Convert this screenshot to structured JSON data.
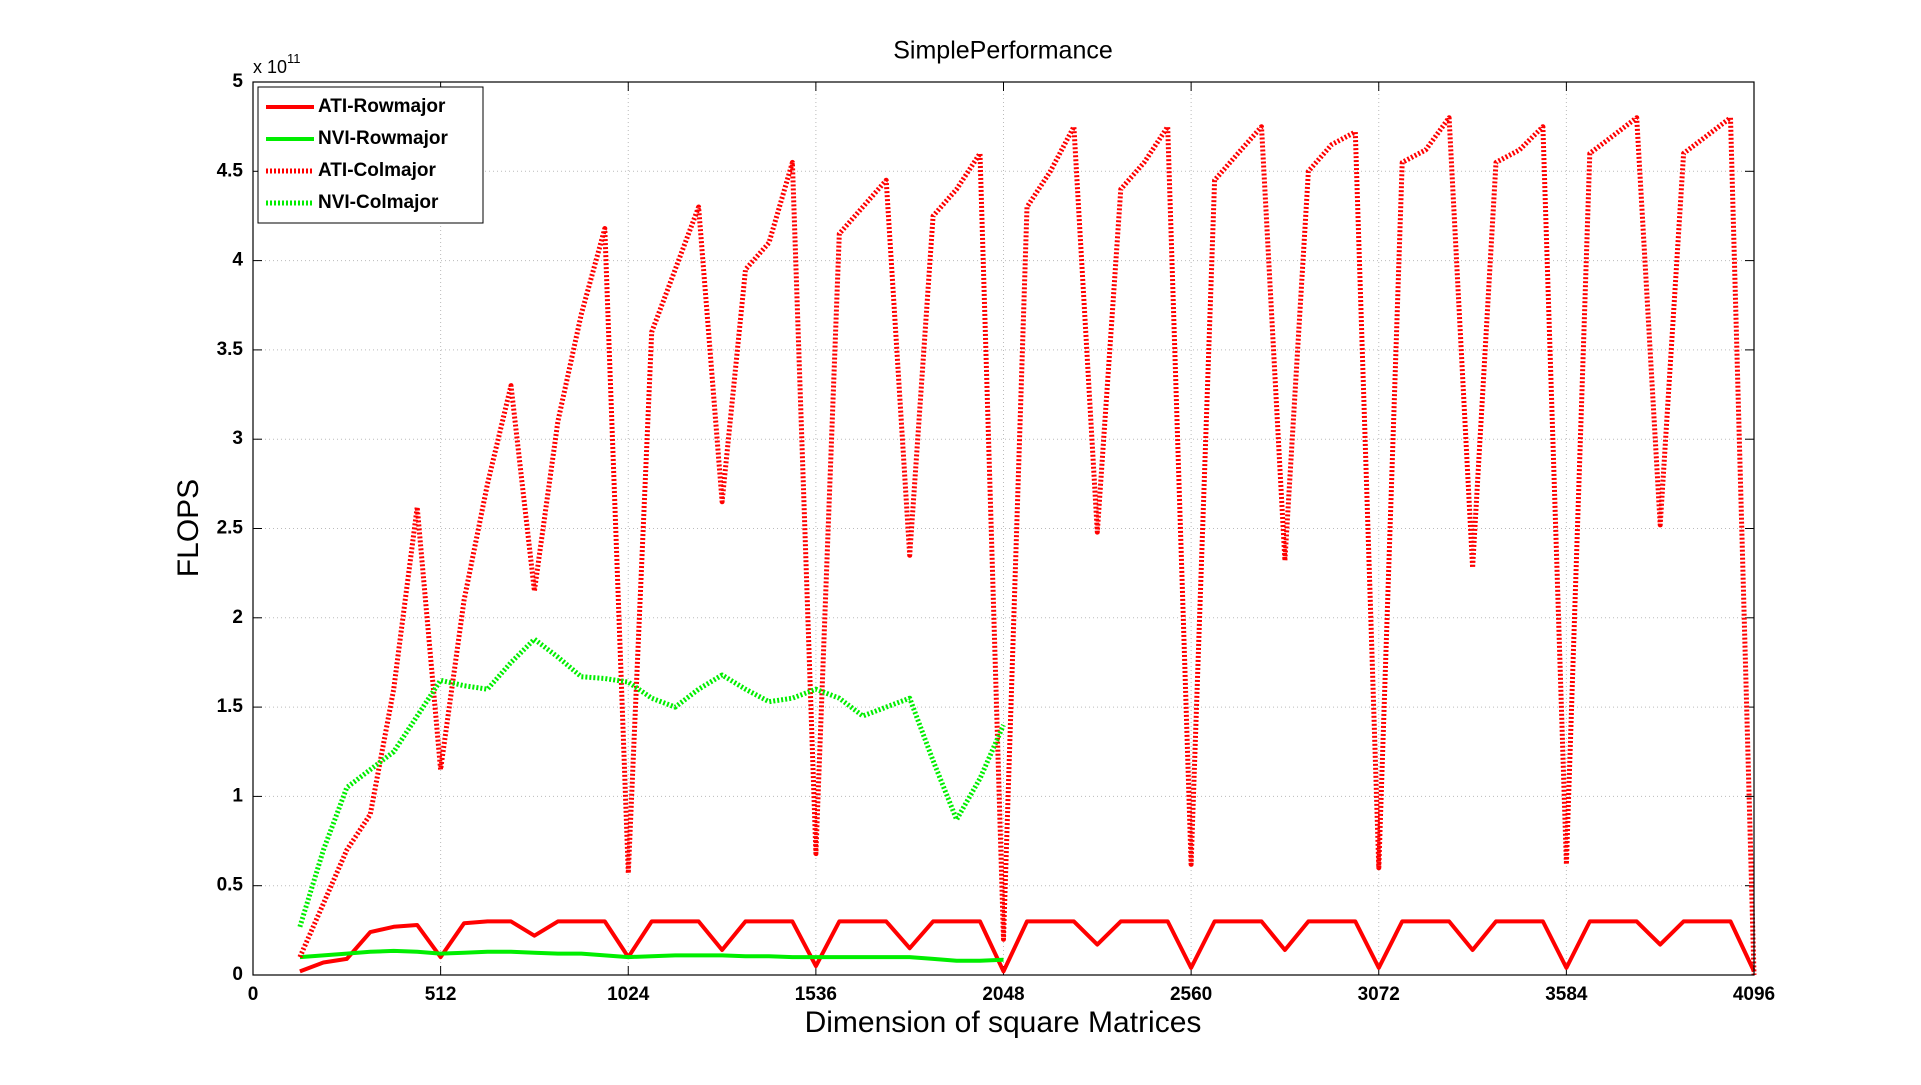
{
  "chart_data": {
    "type": "line",
    "title": "SimplePerformance",
    "xlabel": "Dimension of square Matrices",
    "ylabel": "FLOPS",
    "y_scale_label": "x 10",
    "y_scale_exponent": "11",
    "x": [
      128,
      192,
      256,
      320,
      384,
      448,
      512,
      576,
      640,
      704,
      768,
      832,
      896,
      960,
      1024,
      1088,
      1152,
      1216,
      1280,
      1344,
      1408,
      1472,
      1536,
      1600,
      1664,
      1728,
      1792,
      1856,
      1920,
      1984,
      2048,
      2112,
      2176,
      2240,
      2304,
      2368,
      2432,
      2496,
      2560,
      2624,
      2688,
      2752,
      2816,
      2880,
      2944,
      3008,
      3072,
      3136,
      3200,
      3264,
      3328,
      3392,
      3456,
      3520,
      3584,
      3648,
      3712,
      3776,
      3840,
      3904,
      3968,
      4032,
      4096
    ],
    "series": [
      {
        "name": "ATI-Rowmajor",
        "color": "#ff0000",
        "style": "solid",
        "values": [
          0.02,
          0.07,
          0.09,
          0.24,
          0.27,
          0.28,
          0.1,
          0.29,
          0.3,
          0.3,
          0.22,
          0.3,
          0.3,
          0.3,
          0.1,
          0.3,
          0.3,
          0.3,
          0.14,
          0.3,
          0.3,
          0.3,
          0.05,
          0.3,
          0.3,
          0.3,
          0.15,
          0.3,
          0.3,
          0.3,
          0.02,
          0.3,
          0.3,
          0.3,
          0.17,
          0.3,
          0.3,
          0.3,
          0.04,
          0.3,
          0.3,
          0.3,
          0.14,
          0.3,
          0.3,
          0.3,
          0.04,
          0.3,
          0.3,
          0.3,
          0.14,
          0.3,
          0.3,
          0.3,
          0.04,
          0.3,
          0.3,
          0.3,
          0.17,
          0.3,
          0.3,
          0.3,
          0.02
        ]
      },
      {
        "name": "NVI-Rowmajor",
        "color": "#00ee00",
        "style": "solid",
        "values": [
          0.1,
          0.11,
          0.12,
          0.13,
          0.135,
          0.13,
          0.12,
          0.125,
          0.13,
          0.13,
          0.125,
          0.12,
          0.12,
          0.11,
          0.1,
          0.105,
          0.11,
          0.11,
          0.11,
          0.105,
          0.105,
          0.1,
          0.1,
          0.1,
          0.1,
          0.1,
          0.1,
          0.09,
          0.08,
          0.08,
          0.085,
          null,
          null,
          null,
          null,
          null,
          null,
          null,
          null,
          null,
          null,
          null,
          null,
          null,
          null,
          null,
          null,
          null,
          null,
          null,
          null,
          null,
          null,
          null,
          null,
          null,
          null,
          null,
          null,
          null,
          null,
          null,
          null
        ]
      },
      {
        "name": "ATI-Colmajor",
        "color": "#ff0000",
        "style": "dotted",
        "values": [
          0.1,
          0.4,
          0.7,
          0.9,
          1.6,
          2.62,
          1.15,
          2.1,
          2.75,
          3.3,
          2.15,
          3.1,
          3.7,
          4.18,
          0.57,
          3.6,
          3.95,
          4.3,
          2.65,
          3.95,
          4.1,
          4.55,
          0.68,
          4.15,
          4.3,
          4.45,
          2.35,
          4.25,
          4.4,
          4.6,
          0.2,
          4.3,
          4.5,
          4.75,
          2.48,
          4.4,
          4.55,
          4.75,
          0.62,
          4.45,
          4.6,
          4.75,
          2.32,
          4.5,
          4.65,
          4.72,
          0.6,
          4.55,
          4.62,
          4.8,
          2.28,
          4.55,
          4.62,
          4.75,
          0.62,
          4.6,
          4.7,
          4.8,
          2.52,
          4.6,
          4.7,
          4.8,
          0.0
        ]
      },
      {
        "name": "NVI-Colmajor",
        "color": "#00ee00",
        "style": "dotted",
        "values": [
          0.27,
          0.7,
          1.05,
          1.15,
          1.25,
          1.45,
          1.65,
          1.62,
          1.6,
          1.75,
          1.88,
          1.78,
          1.67,
          1.66,
          1.64,
          1.55,
          1.5,
          1.6,
          1.68,
          1.6,
          1.53,
          1.55,
          1.6,
          1.55,
          1.45,
          1.5,
          1.55,
          1.2,
          0.87,
          1.1,
          1.4,
          null,
          null,
          null,
          null,
          null,
          null,
          null,
          null,
          null,
          null,
          null,
          null,
          null,
          null,
          null,
          null,
          null,
          null,
          null,
          null,
          null,
          null,
          null,
          null,
          null,
          null,
          null,
          null,
          null,
          null,
          null,
          null
        ]
      }
    ],
    "xlim": [
      0,
      4096
    ],
    "xticks": [
      0,
      512,
      1024,
      1536,
      2048,
      2560,
      3072,
      3584,
      4096
    ],
    "ylim": [
      0,
      5
    ],
    "yticks": [
      0,
      0.5,
      1,
      1.5,
      2,
      2.5,
      3,
      3.5,
      4,
      4.5,
      5
    ],
    "grid": true,
    "legend": "upper-left"
  }
}
